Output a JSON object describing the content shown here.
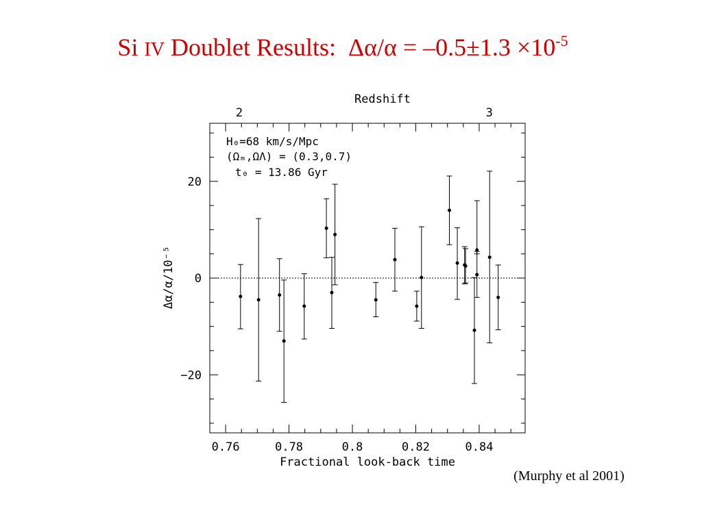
{
  "title": {
    "element": "Si",
    "ion": "IV",
    "rest": "Doublet Results:",
    "equation": "Δα/α = –0.5±1.3 ×10",
    "exponent": "-5"
  },
  "citation": "(Murphy et al 2001)",
  "chart_data": {
    "type": "scatter",
    "xlabel": "Fractional look-back time",
    "ylabel": "Δα/α/10⁻⁵",
    "top_axis_label": "Redshift",
    "top_axis_ticks": [
      {
        "label": "2",
        "x": 0.7643
      },
      {
        "label": "3",
        "x": 0.8432
      }
    ],
    "xlim": [
      0.755,
      0.8545
    ],
    "ylim": [
      -32,
      32
    ],
    "x_tick_labels": [
      "0.76",
      "0.78",
      "0.8",
      "0.82",
      "0.84"
    ],
    "x_tick_values": [
      0.76,
      0.78,
      0.8,
      0.82,
      0.84
    ],
    "y_tick_labels": [
      "−20",
      "0",
      "20"
    ],
    "y_tick_values": [
      -20,
      0,
      20
    ],
    "reference_line": 0,
    "grid": false,
    "legend": "none",
    "annotation_lines": [
      "H₀=68 km/s/Mpc",
      "(Ωₘ,ΩΛ) = (0.3,0.7)",
      "t₀ = 13.86 Gyr"
    ],
    "points": [
      {
        "x": 0.7647,
        "y": -3.8,
        "lo": -10.5,
        "hi": 2.8
      },
      {
        "x": 0.7704,
        "y": -4.5,
        "lo": -21.3,
        "hi": 12.3
      },
      {
        "x": 0.777,
        "y": -3.5,
        "lo": -11.0,
        "hi": 4.0
      },
      {
        "x": 0.7784,
        "y": -13.0,
        "lo": -25.7,
        "hi": -0.4
      },
      {
        "x": 0.7848,
        "y": -5.8,
        "lo": -12.6,
        "hi": 0.9
      },
      {
        "x": 0.7918,
        "y": 10.3,
        "lo": 4.2,
        "hi": 16.4
      },
      {
        "x": 0.7935,
        "y": -3.0,
        "lo": -10.4,
        "hi": 4.3
      },
      {
        "x": 0.7945,
        "y": 9.0,
        "lo": -1.4,
        "hi": 19.4
      },
      {
        "x": 0.8074,
        "y": -4.5,
        "lo": -8.0,
        "hi": -0.9
      },
      {
        "x": 0.8134,
        "y": 3.8,
        "lo": -2.7,
        "hi": 10.3
      },
      {
        "x": 0.8203,
        "y": -5.8,
        "lo": -8.9,
        "hi": -2.7
      },
      {
        "x": 0.8218,
        "y": 0.1,
        "lo": -10.4,
        "hi": 10.6
      },
      {
        "x": 0.8306,
        "y": 14.0,
        "lo": 6.9,
        "hi": 21.1
      },
      {
        "x": 0.8331,
        "y": 3.1,
        "lo": -4.4,
        "hi": 10.4
      },
      {
        "x": 0.8354,
        "y": 2.7,
        "lo": -1.2,
        "hi": 6.5
      },
      {
        "x": 0.8357,
        "y": 2.5,
        "lo": -1.0,
        "hi": 6.1
      },
      {
        "x": 0.8385,
        "y": -10.8,
        "lo": -21.8,
        "hi": 0.1
      },
      {
        "x": 0.8393,
        "y": 5.8,
        "lo": 5.0,
        "hi": 16.0
      },
      {
        "x": 0.8393,
        "y": 0.7,
        "lo": -4.0,
        "hi": 5.5
      },
      {
        "x": 0.8433,
        "y": 4.3,
        "lo": -13.4,
        "hi": 22.1
      },
      {
        "x": 0.846,
        "y": -4.0,
        "lo": -10.7,
        "hi": 2.7
      }
    ]
  }
}
